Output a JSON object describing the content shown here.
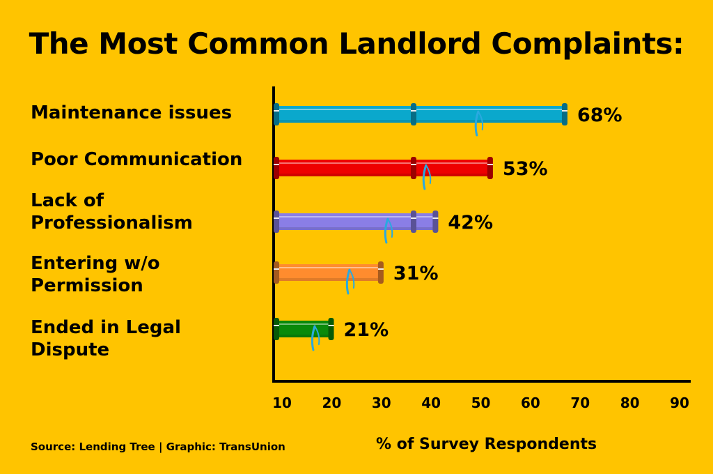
{
  "chart_data": {
    "type": "bar",
    "orientation": "horizontal",
    "title": "The Most Common Landlord Complaints:",
    "categories": [
      "Maintenance issues",
      "Poor Communication",
      "Lack of Professionalism",
      "Entering w/o Permission",
      "Ended in Legal Dispute"
    ],
    "category_lines": [
      [
        "Maintenance issues"
      ],
      [
        "Poor Communication"
      ],
      [
        "Lack of",
        "Professionalism"
      ],
      [
        "Entering w/o",
        "Permission"
      ],
      [
        "Ended in Legal",
        "Dispute"
      ]
    ],
    "values": [
      68,
      53,
      42,
      31,
      21
    ],
    "data_labels": [
      "68%",
      "53%",
      "42%",
      "31%",
      "21%"
    ],
    "colors": [
      "#0aa8cc",
      "#ee0000",
      "#8a7ee6",
      "#ff8c2e",
      "#0a8a0a"
    ],
    "xlabel": "% of Survey Respondents",
    "ylabel": "",
    "xlim": [
      10,
      90
    ],
    "xticks": [
      "10",
      "20",
      "30",
      "40",
      "50",
      "60",
      "70",
      "80",
      "90"
    ],
    "grid": false,
    "bar_style": "leaking water pipes"
  },
  "footer": {
    "source": "Source: Lending Tree  | Graphic: TransUnion"
  },
  "background_color": "#ffc400"
}
